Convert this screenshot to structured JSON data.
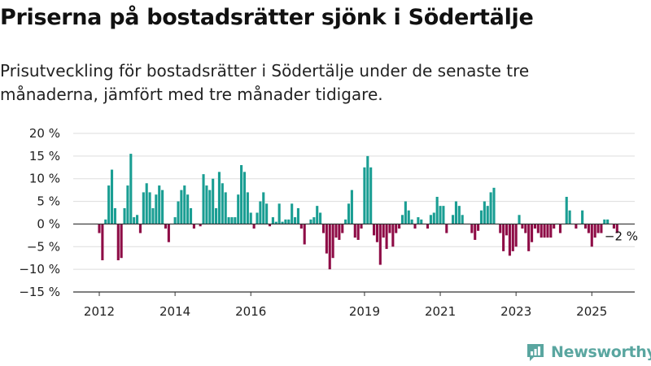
{
  "header": {
    "title": "Priserna på bostadsrätter sjönk i Södertälje",
    "subtitle": "Prisutveckling för bostadsrätter i Södertälje under de senaste tre månaderna, jämfört med tre månader tidigare."
  },
  "brand": {
    "name": "Newsworthy",
    "icon": "newsworthy-logo-icon"
  },
  "colors": {
    "positive": "#1a9e93",
    "negative": "#8e0c46",
    "grid": "#dddddd",
    "axis": "#333333",
    "brand": "#5aa6a0"
  },
  "chart_data": {
    "type": "bar",
    "title": "",
    "xlabel": "",
    "ylabel": "",
    "ylim": [
      -15,
      20
    ],
    "y_ticks": [
      -15,
      -10,
      -5,
      0,
      5,
      10,
      15,
      20
    ],
    "y_tick_labels": [
      "−15 %",
      "−10 %",
      "−5 %",
      "0 %",
      "5 %",
      "10 %",
      "15 %",
      "20 %"
    ],
    "x_start": "2012-01",
    "x_ticks": [
      {
        "date": "2012-01",
        "label": "2012"
      },
      {
        "date": "2014-01",
        "label": "2014"
      },
      {
        "date": "2016-01",
        "label": "2016"
      },
      {
        "date": "2019-01",
        "label": "2019"
      },
      {
        "date": "2021-01",
        "label": "2021"
      },
      {
        "date": "2023-01",
        "label": "2023"
      },
      {
        "date": "2025-01",
        "label": "2025"
      }
    ],
    "annotation": {
      "date": "2025-04",
      "value": -2,
      "label": "−2 %"
    },
    "values": [
      -2,
      -8,
      1,
      8.5,
      12,
      3.5,
      -8,
      -7.5,
      3.5,
      8.5,
      15.5,
      1.5,
      2,
      -2,
      7,
      9,
      7,
      3.5,
      6.5,
      8.5,
      7.5,
      -1,
      -4,
      0,
      1.5,
      5,
      7.5,
      8.5,
      6.5,
      3.5,
      -1,
      0,
      -0.5,
      11,
      8.5,
      7.5,
      10,
      3.5,
      11.5,
      9,
      7,
      1.5,
      1.5,
      1.5,
      6.5,
      13,
      11.5,
      7,
      2.5,
      -1,
      2.5,
      5,
      7,
      4.5,
      -0.5,
      1.5,
      0.5,
      4.5,
      0.5,
      1,
      1,
      4.5,
      1.5,
      3.5,
      -1,
      -4.5,
      0,
      1,
      1.5,
      4,
      2.5,
      -2,
      -6.5,
      -10,
      -7.5,
      -3,
      -3.5,
      -2,
      1,
      4.5,
      7.5,
      -3,
      -3.5,
      -1,
      12.5,
      15,
      12.5,
      -2.5,
      -4,
      -9,
      -3,
      -5.5,
      -2,
      -5,
      -2,
      -1,
      2,
      5,
      3,
      1,
      -1,
      1.5,
      1,
      0,
      -1,
      2,
      2.5,
      6,
      4,
      4,
      -2,
      0,
      2,
      5,
      4,
      2,
      0,
      0,
      -2,
      -3.5,
      -1.5,
      3,
      5,
      4,
      7,
      8,
      0,
      -2,
      -6,
      -2.5,
      -7,
      -6,
      -5,
      2,
      -1,
      -2,
      -6,
      -4,
      -1,
      -2,
      -3,
      -3,
      -3,
      -3,
      -1,
      0,
      -2,
      0,
      6,
      3,
      0,
      -1,
      0,
      3,
      -1,
      -2,
      -5,
      -3,
      -2,
      -2,
      1,
      1,
      0,
      -1,
      -2,
      0,
      0,
      0
    ]
  }
}
